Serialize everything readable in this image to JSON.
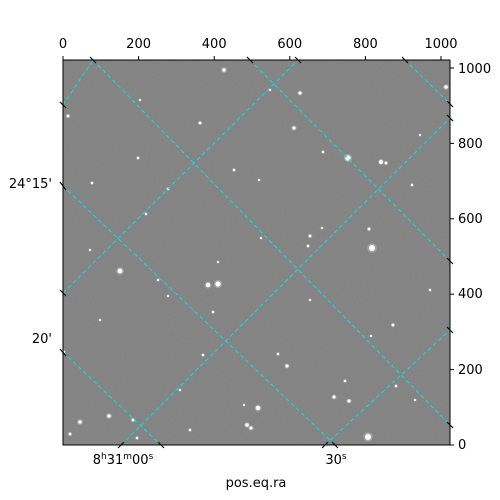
{
  "figure": {
    "xlabel": "pos.eq.ra",
    "pixel_x_ticks": [
      "0",
      "200",
      "400",
      "600",
      "800",
      "1000"
    ],
    "pixel_y_ticks": [
      "0",
      "200",
      "400",
      "600",
      "800",
      "1000"
    ],
    "dec_labels": [
      "24°15'",
      "20'"
    ],
    "ra_labels": [
      {
        "h": "8",
        "hs": "h",
        "m": "31",
        "ms": "m",
        "s": "00",
        "ss": "s"
      },
      {
        "s": "30",
        "ss": "s"
      }
    ]
  },
  "colors": {
    "background": "#7a7a7a",
    "grid": "#00e5e5",
    "frame": "#000000"
  }
}
